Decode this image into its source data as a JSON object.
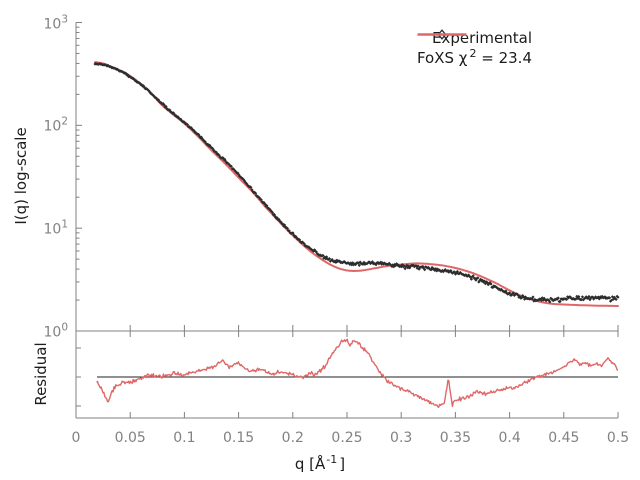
{
  "legend": {
    "experimental_label": "Experimental",
    "fit_label_prefix": "FoXS χ",
    "fit_label_sup": "2",
    "fit_label_suffix": " = 23.4"
  },
  "axes": {
    "y_label": "I(q) log-scale",
    "residual_label": "Residual",
    "x_label_prefix": "q [Å",
    "x_label_sup": "-1",
    "x_label_suffix": "]",
    "x_tick_labels": [
      "0",
      "0.05",
      "0.1",
      "0.15",
      "0.2",
      "0.25",
      "0.3",
      "0.35",
      "0.4",
      "0.45",
      "0.5"
    ],
    "y_tick_base": "10",
    "y_tick_exponents": [
      "3",
      "2",
      "1",
      "0"
    ]
  },
  "colors": {
    "fit_line": "#e06767",
    "experimental_points": "#2d2d2d",
    "tick_label": "#828282",
    "axis_line": "#808080",
    "baseline": "#222222",
    "background": "#ffffff"
  },
  "chart_data": [
    {
      "type": "scatter",
      "panel": "main",
      "title": "",
      "xlabel": "q [Å^-1]",
      "ylabel": "I(q) log-scale",
      "xlim": [
        0,
        0.5
      ],
      "ylim": [
        1,
        1000
      ],
      "yscale": "log",
      "x_ticks": [
        0,
        0.05,
        0.1,
        0.15,
        0.2,
        0.25,
        0.3,
        0.35,
        0.4,
        0.45,
        0.5
      ],
      "legend_position": "top-right",
      "grid": false,
      "series": [
        {
          "name": "Experimental",
          "type": "scatter",
          "marker": "diamond",
          "color": "#2d2d2d",
          "x": [
            0.0175,
            0.025,
            0.035,
            0.045,
            0.055,
            0.065,
            0.075,
            0.085,
            0.0996,
            0.1125,
            0.125,
            0.1375,
            0.15,
            0.1625,
            0.175,
            0.1875,
            0.2,
            0.2125,
            0.225,
            0.2375,
            0.25,
            0.2625,
            0.275,
            0.2875,
            0.3,
            0.3125,
            0.325,
            0.3375,
            0.35,
            0.3625,
            0.375,
            0.3875,
            0.4,
            0.4125,
            0.425,
            0.4375,
            0.45,
            0.4625,
            0.475,
            0.4875,
            0.5
          ],
          "y": [
            400,
            392,
            360,
            322,
            272,
            225,
            180,
            143,
            108,
            81,
            60,
            45.5,
            33,
            23.5,
            16.8,
            11.9,
            8.7,
            6.7,
            5.5,
            4.75,
            4.6,
            4.5,
            4.55,
            4.45,
            4.25,
            4.2,
            4.1,
            3.95,
            3.7,
            3.4,
            3.05,
            2.65,
            2.3,
            2.12,
            2.02,
            2.0,
            2.05,
            2.08,
            2.1,
            2.1,
            2.05
          ]
        },
        {
          "name": "FoXS",
          "type": "line",
          "chi2": 23.4,
          "color": "#e06767",
          "x": [
            0.0175,
            0.025,
            0.031,
            0.041,
            0.05,
            0.059,
            0.068,
            0.0775,
            0.087,
            0.0996,
            0.1125,
            0.125,
            0.137,
            0.15,
            0.163,
            0.175,
            0.188,
            0.2,
            0.213,
            0.225,
            0.238,
            0.25,
            0.262,
            0.275,
            0.288,
            0.3,
            0.313,
            0.325,
            0.338,
            0.35,
            0.363,
            0.375,
            0.388,
            0.4,
            0.412,
            0.425,
            0.437,
            0.45,
            0.475,
            0.5
          ],
          "y": [
            412,
            400,
            377,
            341,
            302,
            257,
            214,
            164,
            134,
            105,
            78,
            57,
            43,
            31,
            22.4,
            16,
            11.4,
            8.5,
            6.35,
            5.1,
            4.25,
            3.88,
            3.86,
            4.06,
            4.3,
            4.43,
            4.54,
            4.49,
            4.34,
            4.1,
            3.75,
            3.35,
            2.9,
            2.48,
            2.17,
            1.96,
            1.85,
            1.81,
            1.77,
            1.75
          ]
        }
      ]
    },
    {
      "type": "line",
      "panel": "residual",
      "ylabel": "Residual",
      "xlim": [
        0,
        0.5
      ],
      "ylim": [
        0.5,
        2.0
      ],
      "yscale": "log",
      "baseline": 1.0,
      "grid": false,
      "series": [
        {
          "name": "Residual",
          "color": "#e06767",
          "x": [
            0.019,
            0.024,
            0.0295,
            0.035,
            0.042,
            0.05,
            0.06,
            0.07,
            0.08,
            0.09,
            0.1,
            0.11,
            0.125,
            0.135,
            0.1415,
            0.15,
            0.16,
            0.17,
            0.18,
            0.19,
            0.2,
            0.21,
            0.215,
            0.22,
            0.23,
            0.235,
            0.24,
            0.245,
            0.25,
            0.2525,
            0.255,
            0.26,
            0.265,
            0.27,
            0.275,
            0.28,
            0.285,
            0.29,
            0.3,
            0.31,
            0.32,
            0.33,
            0.335,
            0.34,
            0.3435,
            0.347,
            0.352,
            0.36,
            0.37,
            0.38,
            0.39,
            0.4,
            0.41,
            0.42,
            0.43,
            0.44,
            0.45,
            0.455,
            0.46,
            0.465,
            0.47,
            0.475,
            0.48,
            0.485,
            0.49,
            0.495,
            0.5
          ],
          "y": [
            0.93,
            0.83,
            0.66,
            0.84,
            0.9,
            0.91,
            0.98,
            1.04,
            1.01,
            1.06,
            1.03,
            1.09,
            1.17,
            1.31,
            1.17,
            1.25,
            1.09,
            1.13,
            1.06,
            1.09,
            1.03,
            0.99,
            1.08,
            1.03,
            1.19,
            1.4,
            1.59,
            1.79,
            1.87,
            1.67,
            1.81,
            1.76,
            1.59,
            1.47,
            1.25,
            1.08,
            0.98,
            0.9,
            0.83,
            0.76,
            0.7,
            0.65,
            0.62,
            0.67,
            0.98,
            0.64,
            0.69,
            0.71,
            0.78,
            0.76,
            0.81,
            0.83,
            0.87,
            0.97,
            1.03,
            1.09,
            1.17,
            1.25,
            1.35,
            1.21,
            1.27,
            1.19,
            1.25,
            1.21,
            1.35,
            1.27,
            1.09
          ]
        }
      ]
    }
  ]
}
